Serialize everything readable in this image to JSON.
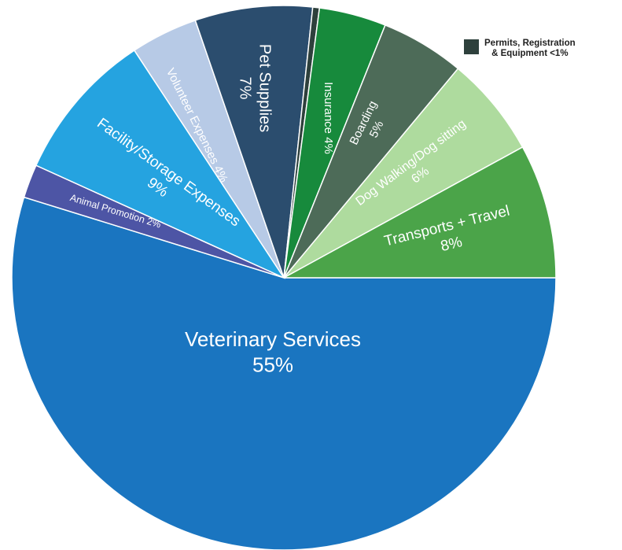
{
  "chart_data": {
    "type": "pie",
    "title": "",
    "slices": [
      {
        "label_lines": [
          "Veterinary Services",
          "55%"
        ],
        "value": 55,
        "color": "#1a75c0"
      },
      {
        "label_lines": [
          "Animal Promotion 2%"
        ],
        "value": 2,
        "color": "#4d55a5"
      },
      {
        "label_lines": [
          "Facility/Storage Expenses",
          "9%"
        ],
        "value": 9,
        "color": "#25a3e0"
      },
      {
        "label_lines": [
          "Volunteer Expenses 4%"
        ],
        "value": 4,
        "color": "#b7cae6"
      },
      {
        "label_lines": [
          "Pet Supplies",
          "7%"
        ],
        "value": 7,
        "color": "#2b4d6e"
      },
      {
        "label_lines": [
          "Permits, Registration",
          "& Equipment <1%"
        ],
        "value": 0.4,
        "color": "#2e403c"
      },
      {
        "label_lines": [
          "Insurance 4%"
        ],
        "value": 4,
        "color": "#178a3c"
      },
      {
        "label_lines": [
          "Boarding",
          "5%"
        ],
        "value": 5,
        "color": "#4d6b58"
      },
      {
        "label_lines": [
          "Dog Walking/Dog sitting",
          "6%"
        ],
        "value": 6,
        "color": "#aedb9e"
      },
      {
        "label_lines": [
          "Transports + Travel",
          "8%"
        ],
        "value": 8,
        "color": "#4ba449"
      }
    ]
  },
  "legend": {
    "line1": "Permits, Registration",
    "line2": "& Equipment <1%",
    "color": "#2e403c"
  }
}
